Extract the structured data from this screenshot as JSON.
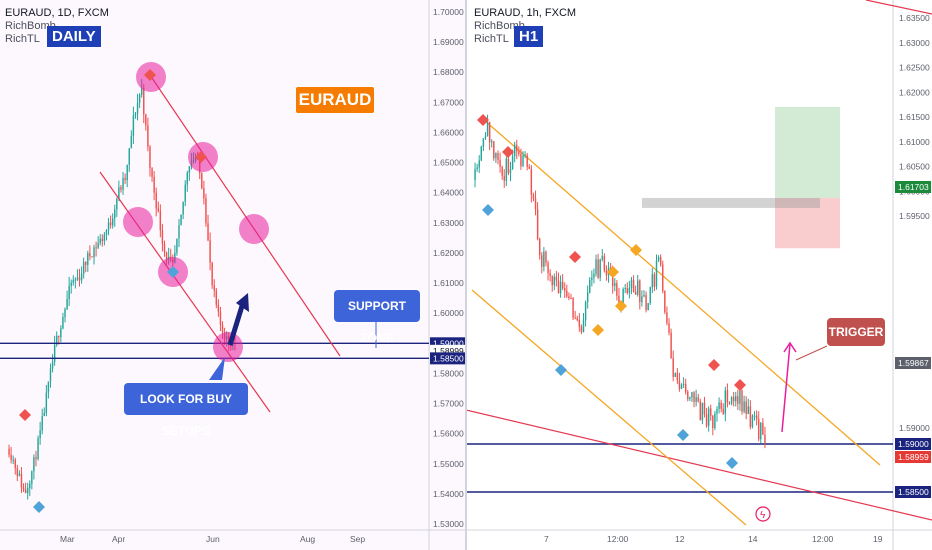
{
  "left_panel": {
    "symbol_line": "EURAUD, 1D, FXCM",
    "indicator_1": "RichBomb",
    "indicator_2": "RichTL",
    "timeframe_badge": "DAILY",
    "title_badge": "EURAUD",
    "support_zone_label": "SUPPORT ZONE",
    "buy_setups_label": "LOOK FOR BUY SETUPS"
  },
  "right_panel": {
    "symbol_line": "EURAUD, 1h, FXCM",
    "indicator_1": "RichBomb",
    "indicator_2": "RichTL",
    "timeframe_badge": "H1",
    "trigger_label": "TRIGGER"
  },
  "colors": {
    "bull": "#26a69a",
    "bear": "#ef5350",
    "badge_blue": "#1f3fb7",
    "orange": "#f57c00",
    "magenta": "#e91e9c",
    "navy": "#1a237e",
    "callout_blue": "#3d64d9",
    "trigger_red": "#c0504d"
  },
  "chart_data": [
    {
      "type": "candlestick",
      "title": "EURAUD, 1D, FXCM",
      "xlabel": "",
      "ylabel": "",
      "ylim": [
        1.53,
        1.7
      ],
      "y_ticks": [
        "1.70000",
        "1.69000",
        "1.68000",
        "1.67000",
        "1.66000",
        "1.65000",
        "1.64000",
        "1.63000",
        "1.62000",
        "1.61000",
        "1.60000",
        "1.59000",
        "1.58999",
        "1.58500",
        "1.58000",
        "1.57000",
        "1.56000",
        "1.55000",
        "1.54000",
        "1.53000"
      ],
      "price_labels": [
        {
          "value": 1.59,
          "text": "1.59000",
          "style": "navy"
        },
        {
          "value": 1.58999,
          "text": "1.58999",
          "style": "plain"
        },
        {
          "value": 1.585,
          "text": "1.58500",
          "style": "navy"
        }
      ],
      "x_ticks": [
        "Mar",
        "Apr",
        "Jun",
        "Aug",
        "Sep"
      ],
      "approx_close_path": [
        1.555,
        1.548,
        1.54,
        1.548,
        1.56,
        1.575,
        1.59,
        1.6,
        1.61,
        1.612,
        1.618,
        1.622,
        1.625,
        1.63,
        1.64,
        1.645,
        1.665,
        1.675,
        1.65,
        1.635,
        1.62,
        1.615,
        1.63,
        1.65,
        1.652,
        1.64,
        1.61,
        1.597,
        1.591,
        1.59
      ],
      "support_levels": [
        1.59,
        1.585
      ],
      "annotations": [
        "SUPPORT ZONE",
        "LOOK FOR BUY SETUPS",
        "EURAUD"
      ]
    },
    {
      "type": "candlestick",
      "title": "EURAUD, 1h, FXCM",
      "xlabel": "",
      "ylabel": "",
      "ylim": [
        1.53,
        1.64
      ],
      "y_ticks": [
        "1.63500",
        "1.63000",
        "1.62500",
        "1.62000",
        "1.61703",
        "1.61500",
        "1.61000",
        "1.60500",
        "1.60000",
        "1.59867",
        "1.59500",
        "1.59000",
        "1.59000",
        "1.58959",
        "1.58500"
      ],
      "price_labels": [
        {
          "value": 1.61703,
          "text": "1.61703",
          "style": "green"
        },
        {
          "value": 1.59867,
          "text": "1.59867",
          "style": "gray"
        },
        {
          "value": 1.59,
          "text": "1.59000",
          "style": "navy"
        },
        {
          "value": 1.58959,
          "text": "1.58959",
          "style": "red"
        },
        {
          "value": 1.585,
          "text": "1.58500",
          "style": "navy"
        }
      ],
      "x_ticks": [
        "7",
        "12:00",
        "12",
        "14",
        "12:00",
        "19"
      ],
      "approx_close_path": [
        1.62,
        1.623,
        1.618,
        1.62,
        1.618,
        1.604,
        1.6,
        1.598,
        1.597,
        1.602,
        1.604,
        1.601,
        1.603,
        1.6,
        1.604,
        1.594,
        1.592,
        1.59,
        1.591,
        1.59,
        1.592,
        1.59,
        1.5895
      ],
      "trade_box": {
        "entry": 1.59867,
        "target": 1.61703,
        "stop": 1.59
      },
      "support_levels": [
        1.59,
        1.585
      ],
      "annotations": [
        "TRIGGER"
      ]
    }
  ]
}
